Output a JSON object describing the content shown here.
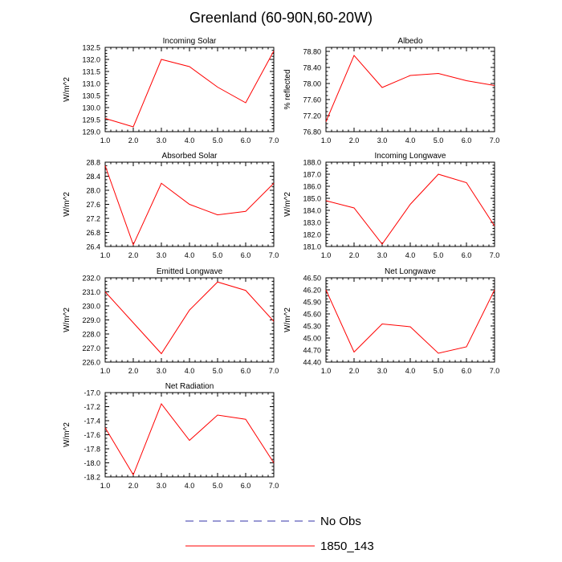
{
  "title": "Greenland (60-90N,60-20W)",
  "legend": {
    "placement": "bottom",
    "entries": [
      {
        "label": "No Obs",
        "color": "#3333aa",
        "dashed": true
      },
      {
        "label": "1850_143",
        "color": "#ff0000",
        "dashed": false
      }
    ]
  },
  "chart_data": [
    {
      "type": "line",
      "title": "Incoming Solar",
      "xlabel": "",
      "ylabel": "W/m^2",
      "xlim": [
        1.0,
        7.0
      ],
      "ylim": [
        129.0,
        132.5
      ],
      "xticks": [
        "1.0",
        "2.0",
        "3.0",
        "4.0",
        "5.0",
        "6.0",
        "7.0"
      ],
      "yticks": [
        "129.0",
        "129.5",
        "130.0",
        "130.5",
        "131.0",
        "131.5",
        "132.0",
        "132.5"
      ],
      "ytick_values": [
        129.0,
        129.5,
        130.0,
        130.5,
        131.0,
        131.5,
        132.0,
        132.5
      ],
      "series": [
        {
          "color": "#ff0000",
          "x": [
            1,
            2,
            3,
            4,
            5,
            6,
            7
          ],
          "values": [
            129.55,
            129.2,
            132.0,
            131.7,
            130.85,
            130.2,
            132.35
          ]
        }
      ]
    },
    {
      "type": "line",
      "title": "Albedo",
      "xlabel": "",
      "ylabel": "% reflected",
      "xlim": [
        1.0,
        7.0
      ],
      "ylim": [
        76.8,
        78.9
      ],
      "xticks": [
        "1.0",
        "2.0",
        "3.0",
        "4.0",
        "5.0",
        "6.0",
        "7.0"
      ],
      "yticks": [
        "76.80",
        "77.20",
        "77.60",
        "78.00",
        "78.40",
        "78.80"
      ],
      "ytick_values": [
        76.8,
        77.2,
        77.6,
        78.0,
        78.4,
        78.8
      ],
      "series": [
        {
          "color": "#ff0000",
          "x": [
            1,
            2,
            3,
            4,
            5,
            6,
            7
          ],
          "values": [
            77.05,
            78.7,
            77.9,
            78.2,
            78.25,
            78.07,
            77.95
          ]
        }
      ]
    },
    {
      "type": "line",
      "title": "Absorbed Solar",
      "xlabel": "",
      "ylabel": "W/m^2",
      "xlim": [
        1.0,
        7.0
      ],
      "ylim": [
        26.4,
        28.8
      ],
      "xticks": [
        "1.0",
        "2.0",
        "3.0",
        "4.0",
        "5.0",
        "6.0",
        "7.0"
      ],
      "yticks": [
        "26.4",
        "26.8",
        "27.2",
        "27.6",
        "28.0",
        "28.4",
        "28.8"
      ],
      "ytick_values": [
        26.4,
        26.8,
        27.2,
        27.6,
        28.0,
        28.4,
        28.8
      ],
      "series": [
        {
          "color": "#ff0000",
          "x": [
            1,
            2,
            3,
            4,
            5,
            6,
            7
          ],
          "values": [
            28.7,
            26.45,
            28.2,
            27.6,
            27.3,
            27.4,
            28.2
          ]
        }
      ]
    },
    {
      "type": "line",
      "title": "Incoming Longwave",
      "xlabel": "",
      "ylabel": "W/m^2",
      "xlim": [
        1.0,
        7.0
      ],
      "ylim": [
        181.0,
        188.0
      ],
      "xticks": [
        "1.0",
        "2.0",
        "3.0",
        "4.0",
        "5.0",
        "6.0",
        "7.0"
      ],
      "yticks": [
        "181.0",
        "182.0",
        "183.0",
        "184.0",
        "185.0",
        "186.0",
        "187.0",
        "188.0"
      ],
      "ytick_values": [
        181.0,
        182.0,
        183.0,
        184.0,
        185.0,
        186.0,
        187.0,
        188.0
      ],
      "series": [
        {
          "color": "#ff0000",
          "x": [
            1,
            2,
            3,
            4,
            5,
            6,
            7
          ],
          "values": [
            184.8,
            184.2,
            181.2,
            184.5,
            187.0,
            186.3,
            182.7
          ]
        }
      ]
    },
    {
      "type": "line",
      "title": "Emitted Longwave",
      "xlabel": "",
      "ylabel": "W/m^2",
      "xlim": [
        1.0,
        7.0
      ],
      "ylim": [
        226.0,
        232.0
      ],
      "xticks": [
        "1.0",
        "2.0",
        "3.0",
        "4.0",
        "5.0",
        "6.0",
        "7.0"
      ],
      "yticks": [
        "226.0",
        "227.0",
        "228.0",
        "229.0",
        "230.0",
        "231.0",
        "232.0"
      ],
      "ytick_values": [
        226.0,
        227.0,
        228.0,
        229.0,
        230.0,
        231.0,
        232.0
      ],
      "series": [
        {
          "color": "#ff0000",
          "x": [
            1,
            2,
            3,
            4,
            5,
            6,
            7
          ],
          "values": [
            231.0,
            228.8,
            226.6,
            229.7,
            231.7,
            231.1,
            228.9
          ]
        }
      ]
    },
    {
      "type": "line",
      "title": "Net Longwave",
      "xlabel": "",
      "ylabel": "W/m^2",
      "xlim": [
        1.0,
        7.0
      ],
      "ylim": [
        44.4,
        46.5
      ],
      "xticks": [
        "1.0",
        "2.0",
        "3.0",
        "4.0",
        "5.0",
        "6.0",
        "7.0"
      ],
      "yticks": [
        "44.40",
        "44.70",
        "45.00",
        "45.30",
        "45.60",
        "45.90",
        "46.20",
        "46.50"
      ],
      "ytick_values": [
        44.4,
        44.7,
        45.0,
        45.3,
        45.6,
        45.9,
        46.2,
        46.5
      ],
      "series": [
        {
          "color": "#ff0000",
          "x": [
            1,
            2,
            3,
            4,
            5,
            6,
            7
          ],
          "values": [
            46.2,
            44.65,
            45.35,
            45.28,
            44.62,
            44.78,
            46.2
          ]
        }
      ]
    },
    {
      "type": "line",
      "title": "Net Radiation",
      "xlabel": "",
      "ylabel": "W/m^2",
      "xlim": [
        1.0,
        7.0
      ],
      "ylim": [
        -18.2,
        -17.0
      ],
      "xticks": [
        "1.0",
        "2.0",
        "3.0",
        "4.0",
        "5.0",
        "6.0",
        "7.0"
      ],
      "yticks": [
        "-18.2",
        "-18.0",
        "-17.8",
        "-17.6",
        "-17.4",
        "-17.2",
        "-17.0"
      ],
      "ytick_values": [
        -18.2,
        -18.0,
        -17.8,
        -17.6,
        -17.4,
        -17.2,
        -17.0
      ],
      "series": [
        {
          "color": "#ff0000",
          "x": [
            1,
            2,
            3,
            4,
            5,
            6,
            7
          ],
          "values": [
            -17.5,
            -18.17,
            -17.16,
            -17.68,
            -17.32,
            -17.38,
            -18.0
          ]
        }
      ]
    }
  ]
}
